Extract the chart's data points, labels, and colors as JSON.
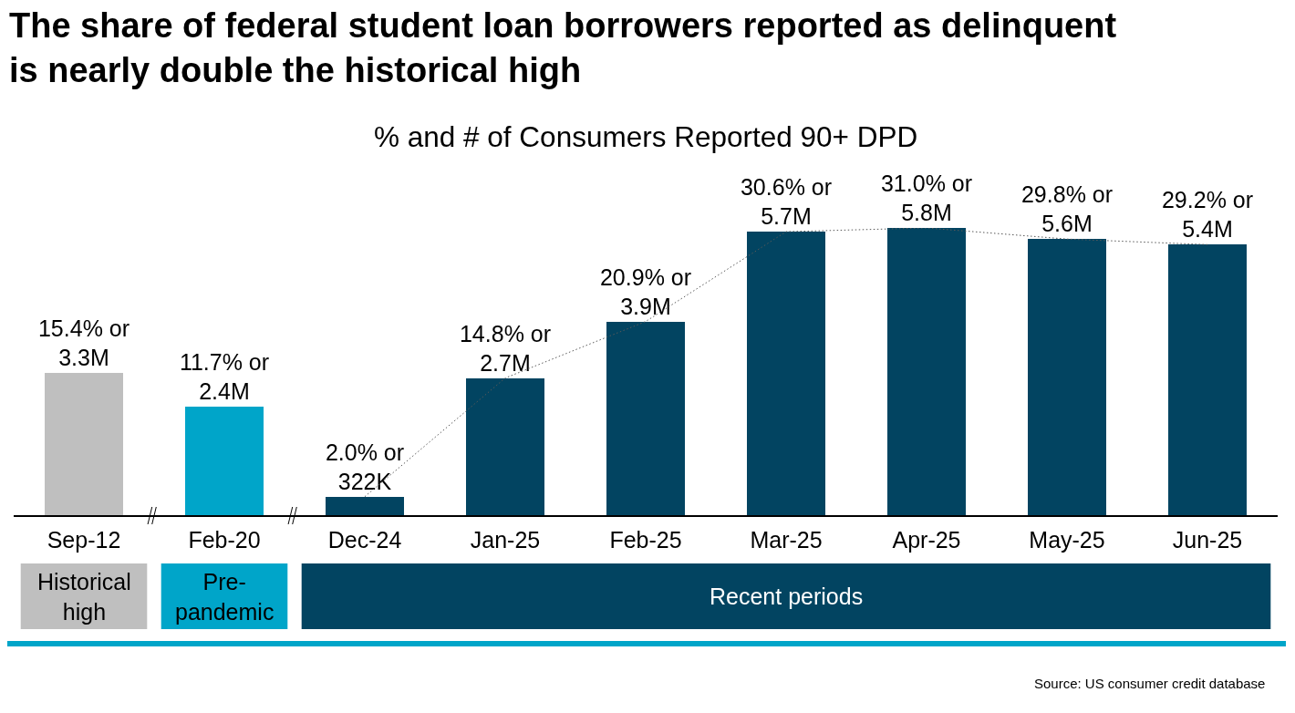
{
  "chart_data": {
    "type": "bar",
    "title": "The share of federal student loan borrowers reported as delinquent is nearly double the historical high",
    "subtitle": "% and # of Consumers Reported 90+ DPD",
    "categories": [
      "Sep-12",
      "Feb-20",
      "Dec-24",
      "Jan-25",
      "Feb-25",
      "Mar-25",
      "Apr-25",
      "May-25",
      "Jun-25"
    ],
    "series": [
      {
        "colors": [
          "#bfbfbf",
          "#00a5c9",
          "#024461",
          "#024461",
          "#024461",
          "#024461",
          "#024461",
          "#024461",
          "#024461"
        ],
        "values": [
          15.4,
          11.7,
          2.0,
          14.8,
          20.9,
          30.6,
          31.0,
          29.8,
          29.2
        ],
        "value_labels": [
          "15.4% or 3.3M",
          "11.7% or 2.4M",
          "2.0% or 322K",
          "14.8% or 2.7M",
          "20.9% or 3.9M",
          "30.6% or 5.7M",
          "31.0% or 5.8M",
          "29.8% or 5.6M",
          "29.2% or 5.4M"
        ]
      },
      {
        "type": "line",
        "color": "#595959",
        "line_style": "dotted",
        "values": [
          null,
          null,
          2.0,
          14.8,
          20.9,
          30.6,
          31.0,
          29.8,
          29.2
        ]
      }
    ],
    "annotations": [
      "Historical high",
      "Pre-pandemic",
      "Recent periods",
      "Source: US consumer credit database"
    ]
  }
}
